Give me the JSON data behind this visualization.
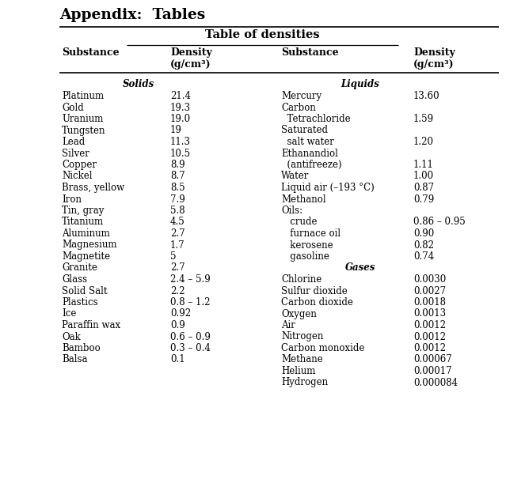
{
  "title": "Appendix:  Tables",
  "table_title": "Table of densities",
  "section_solids": "Solids",
  "section_liquids": "Liquids",
  "section_gases": "Gases",
  "left_data": [
    [
      "Platinum",
      "21.4"
    ],
    [
      "Gold",
      "19.3"
    ],
    [
      "Uranium",
      "19.0"
    ],
    [
      "Tungsten",
      "19"
    ],
    [
      "Lead",
      "11.3"
    ],
    [
      "Silver",
      "10.5"
    ],
    [
      "Copper",
      "8.9"
    ],
    [
      "Nickel",
      "8.7"
    ],
    [
      "Brass, yellow",
      "8.5"
    ],
    [
      "Iron",
      "7.9"
    ],
    [
      "Tin, gray",
      "5.8"
    ],
    [
      "Titanium",
      "4.5"
    ],
    [
      "Aluminum",
      "2.7"
    ],
    [
      "Magnesium",
      "1.7"
    ],
    [
      "Magnetite",
      "5"
    ],
    [
      "Granite",
      "2.7"
    ],
    [
      "Glass",
      "2.4 – 5.9"
    ],
    [
      "Solid Salt",
      "2.2"
    ],
    [
      "Plastics",
      "0.8 – 1.2"
    ],
    [
      "Ice",
      "0.92"
    ],
    [
      "Paraffin wax",
      "0.9"
    ],
    [
      "Oak",
      "0.6 – 0.9"
    ],
    [
      "Bamboo",
      "0.3 – 0.4"
    ],
    [
      "Balsa",
      "0.1"
    ]
  ],
  "right_data": [
    [
      "Mercury",
      "13.60"
    ],
    [
      "Carbon",
      ""
    ],
    [
      "  Tetrachloride",
      "1.59"
    ],
    [
      "Saturated",
      ""
    ],
    [
      "  salt water",
      "1.20"
    ],
    [
      "Ethanandiol",
      ""
    ],
    [
      "  (antifreeze)",
      "1.11"
    ],
    [
      "Water",
      "1.00"
    ],
    [
      "Liquid air (–193 °C)",
      "0.87"
    ],
    [
      "Methanol",
      "0.79"
    ],
    [
      "Oils:",
      ""
    ],
    [
      "   crude",
      "0.86 – 0.95"
    ],
    [
      "   furnace oil",
      "0.90"
    ],
    [
      "   kerosene",
      "0.82"
    ],
    [
      "   gasoline",
      "0.74"
    ],
    [
      "_GASES_",
      ""
    ],
    [
      "Chlorine",
      "0.0030"
    ],
    [
      "Sulfur dioxide",
      "0.0027"
    ],
    [
      "Carbon dioxide",
      "0.0018"
    ],
    [
      "Oxygen",
      "0.0013"
    ],
    [
      "Air",
      "0.0012"
    ],
    [
      "Nitrogen",
      "0.0012"
    ],
    [
      "Carbon monoxide",
      "0.0012"
    ],
    [
      "Methane",
      "0.00067"
    ],
    [
      "Helium",
      "0.00017"
    ],
    [
      "Hydrogen",
      "0.000084"
    ]
  ],
  "background_color": "#ffffff",
  "text_color": "#000000",
  "font_size": 8.5,
  "header_font_size": 9.0,
  "title_font_size": 13.5
}
